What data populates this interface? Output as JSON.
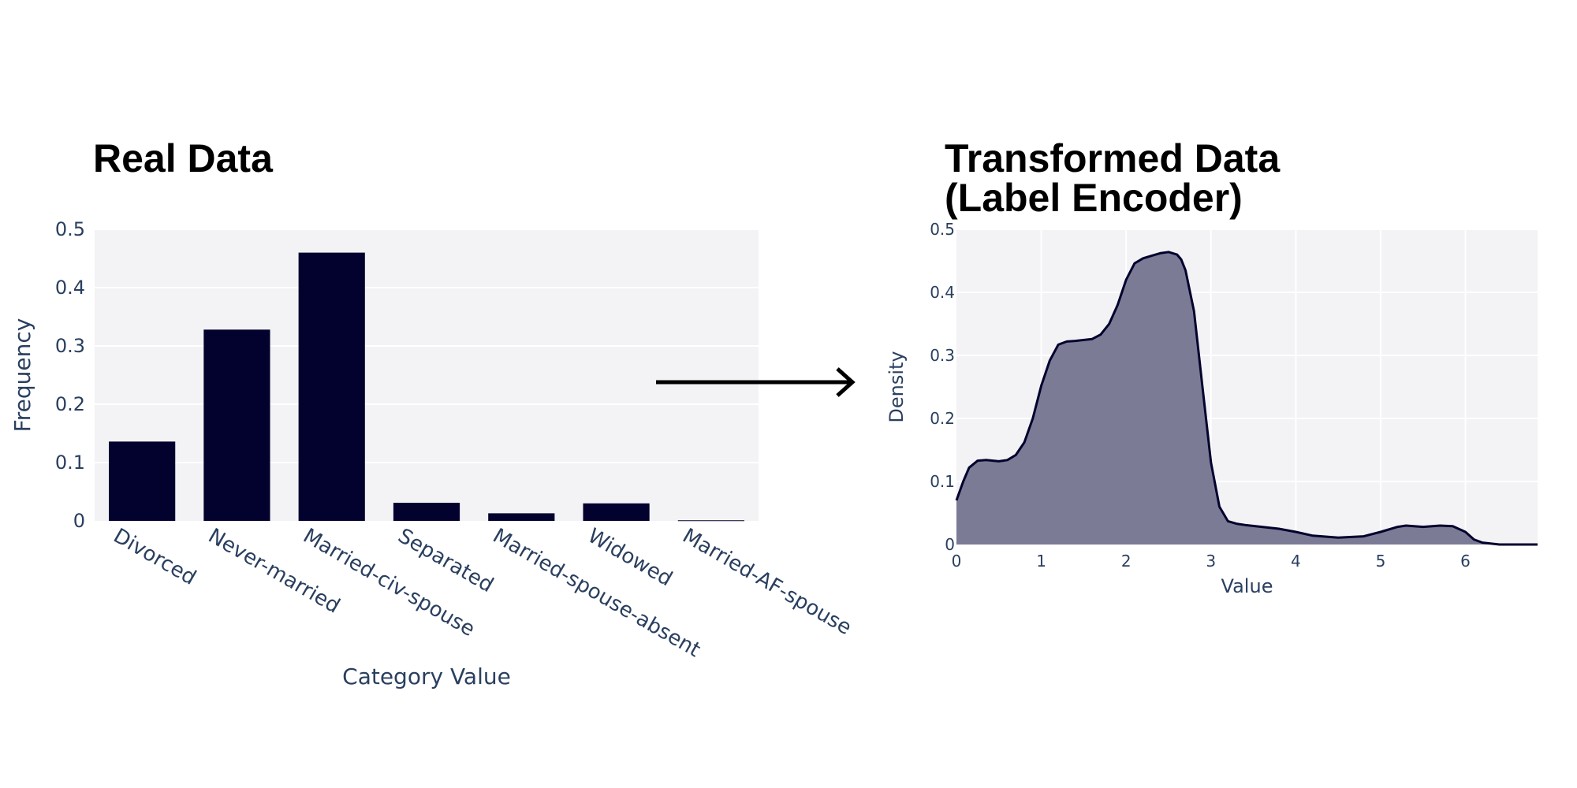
{
  "chart_data": [
    {
      "type": "bar",
      "title": "Real Data",
      "xlabel": "Category Value",
      "ylabel": "Frequency",
      "categories": [
        "Divorced",
        "Never-married",
        "Married-civ-spouse",
        "Separated",
        "Married-spouse-absent",
        "Widowed",
        "Married-AF-spouse"
      ],
      "values": [
        0.136,
        0.328,
        0.46,
        0.031,
        0.013,
        0.03,
        0.001
      ],
      "ylim": [
        0,
        0.5
      ],
      "yticks": [
        "0",
        "0.1",
        "0.2",
        "0.3",
        "0.4",
        "0.5"
      ],
      "bar_color": "#03022e",
      "grid": true,
      "plot_bg": "#f3f3f6"
    },
    {
      "type": "area",
      "title_lines": [
        "Transformed Data",
        "(Label Encoder)"
      ],
      "xlabel": "Value",
      "ylabel": "Density",
      "xlim": [
        0,
        6.85
      ],
      "ylim": [
        0,
        0.5
      ],
      "xticks": [
        "0",
        "1",
        "2",
        "3",
        "4",
        "5",
        "6"
      ],
      "yticks": [
        "0",
        "0.1",
        "0.2",
        "0.3",
        "0.4",
        "0.5"
      ],
      "x": [
        0,
        0.08,
        0.15,
        0.25,
        0.35,
        0.5,
        0.6,
        0.7,
        0.8,
        0.9,
        1.0,
        1.1,
        1.2,
        1.3,
        1.4,
        1.6,
        1.7,
        1.8,
        1.9,
        2.0,
        2.1,
        2.2,
        2.3,
        2.4,
        2.5,
        2.6,
        2.65,
        2.7,
        2.8,
        2.9,
        3.0,
        3.1,
        3.2,
        3.3,
        3.4,
        3.6,
        3.8,
        4.0,
        4.2,
        4.5,
        4.8,
        5.0,
        5.2,
        5.3,
        5.5,
        5.7,
        5.85,
        6.0,
        6.1,
        6.2,
        6.4,
        6.85
      ],
      "y": [
        0.07,
        0.1,
        0.122,
        0.133,
        0.134,
        0.132,
        0.134,
        0.142,
        0.162,
        0.2,
        0.252,
        0.292,
        0.317,
        0.322,
        0.323,
        0.326,
        0.333,
        0.35,
        0.38,
        0.42,
        0.446,
        0.454,
        0.458,
        0.462,
        0.464,
        0.46,
        0.452,
        0.435,
        0.37,
        0.25,
        0.13,
        0.06,
        0.037,
        0.033,
        0.031,
        0.028,
        0.025,
        0.02,
        0.014,
        0.011,
        0.013,
        0.02,
        0.028,
        0.03,
        0.028,
        0.03,
        0.029,
        0.02,
        0.008,
        0.003,
        0.0,
        0.0
      ],
      "line_color": "#03022e",
      "fill_color": "#7c7b95",
      "grid": true,
      "plot_bg": "#f3f3f6"
    }
  ]
}
